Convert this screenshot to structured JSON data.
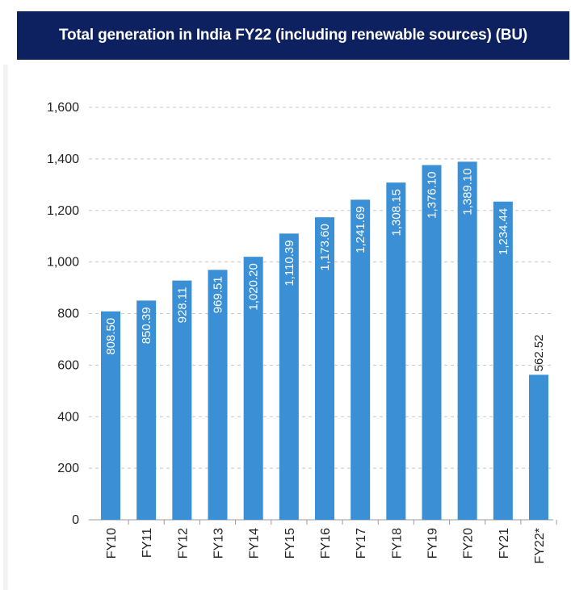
{
  "header": {
    "title": "Total generation in India FY22 (including renewable sources) (BU)"
  },
  "colors": {
    "header_bg": "#0d2060",
    "bar": "#3a8fd5",
    "grid": "#c8c8c8"
  },
  "chart_data": {
    "type": "bar",
    "title": "Total generation in India FY22 (including renewable sources) (BU)",
    "xlabel": "",
    "ylabel": "",
    "ylim": [
      0,
      1600
    ],
    "yticks": [
      0,
      200,
      400,
      600,
      800,
      1000,
      1200,
      1400,
      1600
    ],
    "ytick_labels": [
      "0",
      "200",
      "400",
      "600",
      "800",
      "1,000",
      "1,200",
      "1,400",
      "1,600"
    ],
    "grid": "horizontal dashed",
    "categories": [
      "FY10",
      "FY11",
      "FY12",
      "FY13",
      "FY14",
      "FY15",
      "FY16",
      "FY17",
      "FY18",
      "FY19",
      "FY20",
      "FY21",
      "FY22*"
    ],
    "values": [
      808.5,
      850.39,
      928.11,
      969.51,
      1020.2,
      1110.39,
      1173.6,
      1241.69,
      1308.15,
      1376.1,
      1389.1,
      1234.44,
      562.52
    ],
    "value_labels": [
      "808.50",
      "850.39",
      "928.11",
      "969.51",
      "1,020.20",
      "1,110.39",
      "1,173.60",
      "1,241.69",
      "1,308.15",
      "1,376.10",
      "1,389.10",
      "1,234.44",
      "562.52"
    ]
  }
}
